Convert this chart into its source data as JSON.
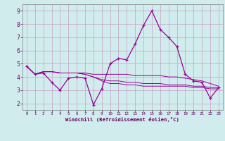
{
  "xlabel": "Windchill (Refroidissement éolien,°C)",
  "x": [
    0,
    1,
    2,
    3,
    4,
    5,
    6,
    7,
    8,
    9,
    10,
    11,
    12,
    13,
    14,
    15,
    16,
    17,
    18,
    19,
    20,
    21,
    22,
    23
  ],
  "line1": [
    4.8,
    4.2,
    4.3,
    3.6,
    3.0,
    3.9,
    4.0,
    3.9,
    1.9,
    3.1,
    5.0,
    5.4,
    5.3,
    6.5,
    7.9,
    9.0,
    7.6,
    7.0,
    6.3,
    4.2,
    3.7,
    3.6,
    2.4,
    3.2
  ],
  "line2": [
    4.8,
    4.2,
    4.4,
    4.4,
    4.3,
    4.3,
    4.3,
    4.3,
    4.2,
    4.2,
    4.2,
    4.2,
    4.2,
    4.1,
    4.1,
    4.1,
    4.1,
    4.0,
    4.0,
    3.9,
    3.8,
    3.7,
    3.5,
    3.3
  ],
  "line3": [
    4.8,
    4.2,
    4.4,
    4.4,
    4.3,
    4.3,
    4.3,
    4.2,
    4.0,
    3.8,
    3.7,
    3.7,
    3.6,
    3.6,
    3.5,
    3.5,
    3.5,
    3.4,
    3.4,
    3.4,
    3.3,
    3.3,
    3.2,
    3.2
  ],
  "line4": [
    4.8,
    4.2,
    4.4,
    4.4,
    4.3,
    4.3,
    4.3,
    4.2,
    4.0,
    3.7,
    3.5,
    3.5,
    3.4,
    3.4,
    3.3,
    3.3,
    3.3,
    3.3,
    3.3,
    3.3,
    3.2,
    3.2,
    3.1,
    3.1
  ],
  "line_color": "#990099",
  "bg_color": "#d0ecec",
  "grid_color": "#c8a0c8",
  "ylim": [
    1.5,
    9.5
  ],
  "yticks": [
    2,
    3,
    4,
    5,
    6,
    7,
    8,
    9
  ],
  "xlim": [
    -0.5,
    23.5
  ],
  "axis_label_color": "#660066",
  "tick_label_color": "#660066"
}
